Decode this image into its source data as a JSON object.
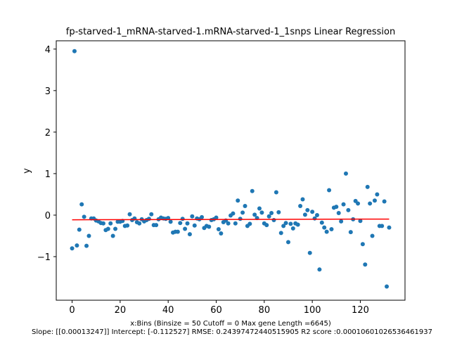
{
  "chart_data": {
    "type": "scatter",
    "title": "fp-starved-1_mRNA-starved-1.mRNA-starved-1_1snps Linear Regression",
    "xlabel": "x:Bins  (Binsize = 50 Cutoff = 0 Max gene Length =6645)",
    "ylabel": "y",
    "footer": "Slope: [[0.00013247]] Intercept: [-0.112527] RMSE: 0.24397472440515905 R2 score :0.00010601026536461937",
    "xlim": [
      -6.6,
      138.6
    ],
    "ylim": [
      -2.05,
      4.2
    ],
    "xticks": [
      0,
      20,
      40,
      60,
      80,
      100,
      120
    ],
    "yticks": [
      -1,
      0,
      1,
      2,
      3,
      4
    ],
    "xtick_labels": [
      "0",
      "20",
      "40",
      "60",
      "80",
      "100",
      "120"
    ],
    "ytick_labels": [
      "−1",
      "0",
      "1",
      "2",
      "3",
      "4"
    ],
    "grid": false,
    "colors": {
      "points": "#1f77b4",
      "fit_line": "#ff0000"
    },
    "fit_line": {
      "slope": 0.00013247,
      "intercept": -0.112527,
      "x": [
        0,
        132
      ]
    },
    "points": {
      "x": [
        0,
        1,
        2,
        3,
        4,
        5,
        6,
        7,
        8,
        9,
        10,
        11,
        12,
        13,
        14,
        15,
        16,
        17,
        18,
        19,
        20,
        21,
        22,
        23,
        24,
        25,
        26,
        27,
        28,
        29,
        30,
        31,
        32,
        33,
        34,
        35,
        36,
        37,
        38,
        39,
        40,
        41,
        42,
        43,
        44,
        45,
        46,
        47,
        48,
        49,
        50,
        51,
        52,
        53,
        54,
        55,
        56,
        57,
        58,
        59,
        60,
        61,
        62,
        63,
        64,
        65,
        66,
        67,
        68,
        69,
        70,
        71,
        72,
        73,
        74,
        75,
        76,
        77,
        78,
        79,
        80,
        81,
        82,
        83,
        84,
        85,
        86,
        87,
        88,
        89,
        90,
        91,
        92,
        93,
        94,
        95,
        96,
        97,
        98,
        99,
        100,
        101,
        102,
        103,
        104,
        105,
        106,
        107,
        108,
        109,
        110,
        111,
        112,
        113,
        114,
        115,
        116,
        117,
        118,
        119,
        120,
        121,
        122,
        123,
        124,
        125,
        126,
        127,
        128,
        129,
        130,
        131,
        132
      ],
      "y": [
        -0.8,
        3.95,
        -0.73,
        -0.35,
        0.26,
        -0.04,
        -0.74,
        -0.5,
        -0.08,
        -0.08,
        -0.13,
        -0.15,
        -0.19,
        -0.2,
        -0.36,
        -0.33,
        -0.2,
        -0.5,
        -0.33,
        -0.16,
        -0.16,
        -0.14,
        -0.26,
        -0.25,
        0.02,
        -0.12,
        -0.08,
        -0.17,
        -0.2,
        -0.1,
        -0.15,
        -0.12,
        -0.09,
        0.02,
        -0.24,
        -0.24,
        -0.1,
        -0.06,
        -0.08,
        -0.09,
        -0.07,
        -0.16,
        -0.42,
        -0.4,
        -0.4,
        -0.19,
        -0.09,
        -0.33,
        -0.2,
        -0.46,
        -0.03,
        -0.25,
        -0.08,
        -0.1,
        -0.05,
        -0.31,
        -0.26,
        -0.28,
        -0.12,
        -0.1,
        -0.06,
        -0.34,
        -0.44,
        -0.17,
        -0.13,
        -0.2,
        -0.01,
        0.04,
        -0.2,
        0.35,
        -0.09,
        0.06,
        0.22,
        -0.26,
        -0.21,
        0.58,
        0.01,
        -0.07,
        0.16,
        0.06,
        -0.2,
        -0.24,
        -0.03,
        0.05,
        -0.12,
        0.55,
        0.07,
        -0.43,
        -0.26,
        -0.19,
        -0.65,
        -0.21,
        -0.32,
        -0.2,
        -0.23,
        0.22,
        0.38,
        0.01,
        0.12,
        -0.91,
        0.08,
        -0.08,
        0.0,
        -1.31,
        -0.18,
        -0.3,
        -0.4,
        0.6,
        -0.34,
        0.18,
        0.2,
        0.05,
        -0.15,
        0.26,
        1.0,
        0.12,
        -0.41,
        -0.1,
        0.34,
        0.28,
        -0.14,
        -0.7,
        -1.19,
        0.68,
        0.28,
        -0.5,
        0.35,
        0.5,
        -0.26,
        -0.26,
        0.33,
        -1.72,
        -0.3
      ]
    }
  }
}
